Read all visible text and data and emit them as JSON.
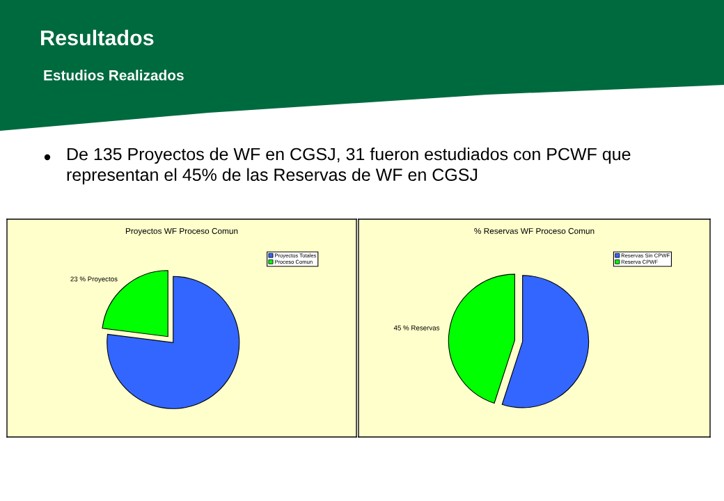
{
  "chart_data": [
    {
      "type": "other",
      "title": "Resultados",
      "subtitle": "Estudios Realizados",
      "annotations": [
        "De 135 Proyectos de WF en CGSJ, 31 fueron estudiados con PCWF que representan el 45% de las Reservas de WF en CGSJ"
      ]
    },
    {
      "type": "pie",
      "title": "Proyectos WF Proceso Comun",
      "categories": [
        "Proyectos Totales",
        "Proceso Comun"
      ],
      "values": [
        77,
        23
      ],
      "colors": [
        "#3366ff",
        "#00ff00"
      ],
      "value_labels": [
        null,
        "23 % Proyectos"
      ],
      "legend": "top right"
    },
    {
      "type": "pie",
      "title": "% Reservas WF Proceso Comun",
      "categories": [
        "Reservas Sin CPWF",
        "Reserva CPWF"
      ],
      "values": [
        55,
        45
      ],
      "colors": [
        "#3366ff",
        "#00ff00"
      ],
      "value_labels": [
        null,
        "45 % Reservas"
      ],
      "legend": "top right"
    }
  ]
}
